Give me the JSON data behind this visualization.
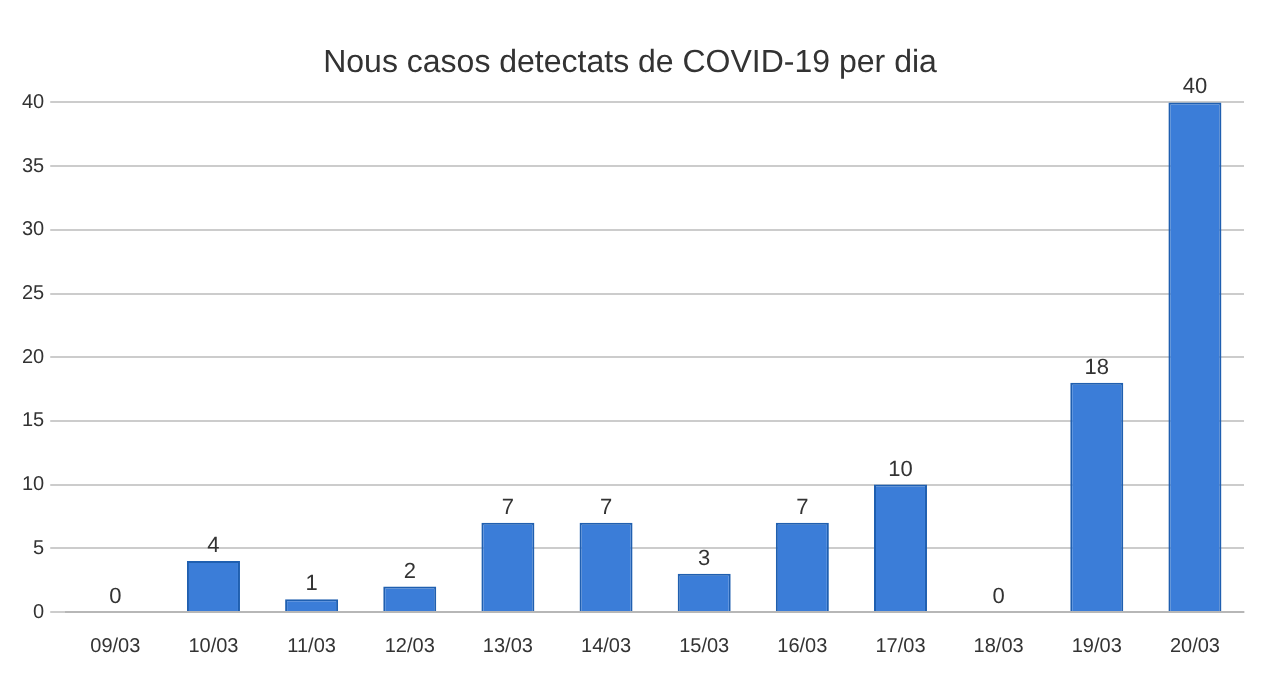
{
  "chart_data": {
    "type": "bar",
    "title": "Nous casos detectats de COVID-19 per dia",
    "categories": [
      "09/03",
      "10/03",
      "11/03",
      "12/03",
      "13/03",
      "14/03",
      "15/03",
      "16/03",
      "17/03",
      "18/03",
      "19/03",
      "20/03"
    ],
    "values": [
      0,
      4,
      1,
      2,
      7,
      7,
      3,
      7,
      10,
      0,
      18,
      40
    ],
    "color": "#3b7dd8",
    "ylim": [
      0,
      40
    ],
    "yticks": [
      0,
      5,
      10,
      15,
      20,
      25,
      30,
      35,
      40
    ],
    "grid": "y",
    "data_labels": true
  }
}
